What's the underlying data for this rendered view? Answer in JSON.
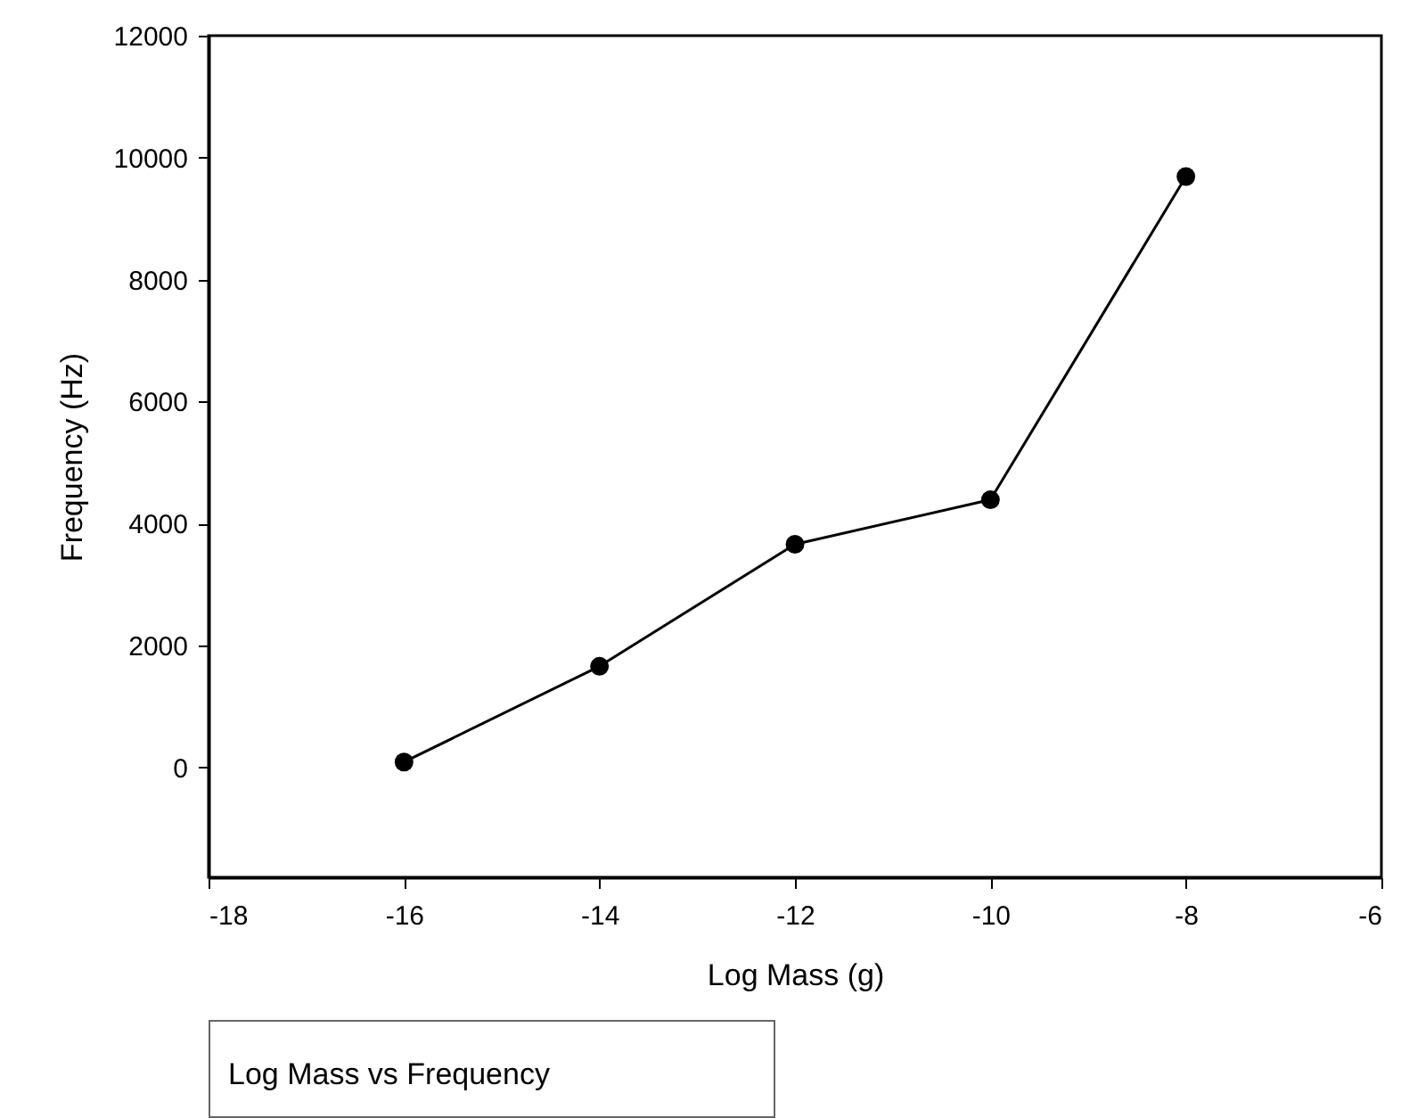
{
  "chart_data": {
    "type": "line",
    "xlabel": "Log Mass (g)",
    "ylabel": "Frequency (Hz)",
    "x": [
      -16,
      -14,
      -12,
      -10,
      -8
    ],
    "series": [
      {
        "color": "#000000",
        "values": [
          90,
          1660,
          3660,
          4390,
          9690
        ]
      }
    ],
    "xlim": [
      -18,
      -6
    ],
    "xticks": [
      -18,
      -16,
      -14,
      -12,
      -10,
      -8,
      -6
    ],
    "ylim": [
      -1800,
      12000
    ],
    "yticks": [
      0,
      2000,
      4000,
      6000,
      8000,
      10000,
      12000
    ],
    "marker": "circle",
    "line_style": "solid",
    "grid": false,
    "annotations": [
      "Log Mass vs Frequency"
    ]
  }
}
